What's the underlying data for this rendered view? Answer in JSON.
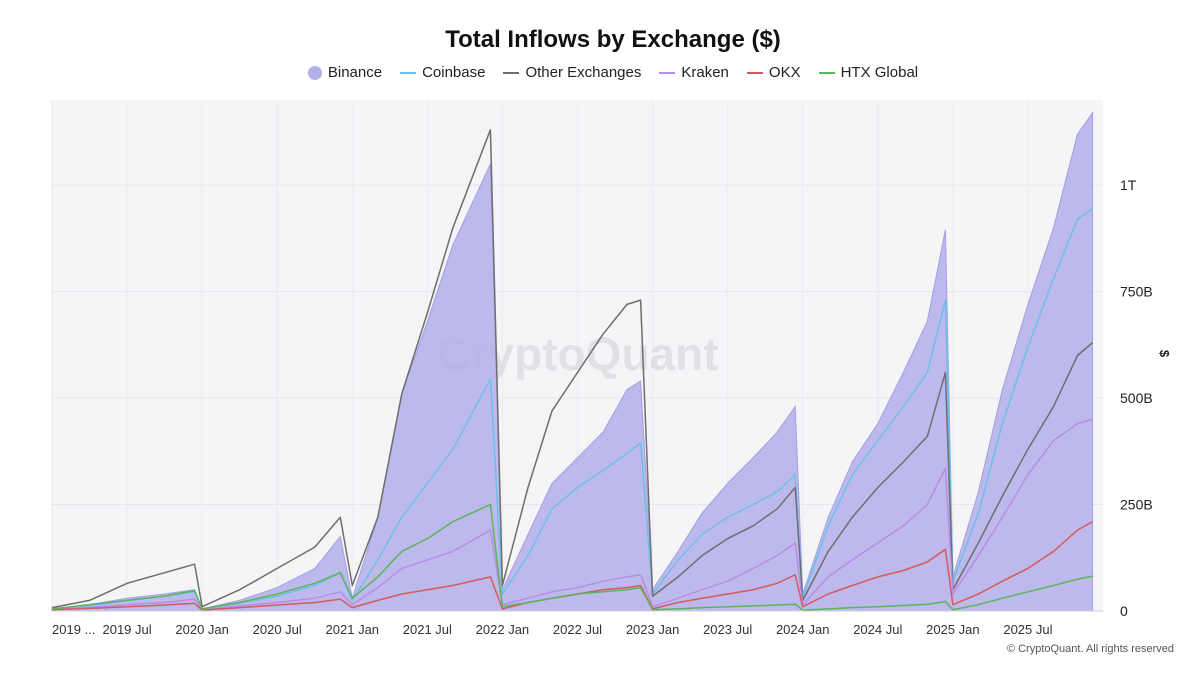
{
  "chart_data": {
    "type": "area",
    "title": "Total Inflows by Exchange ($)",
    "ylabel": "$",
    "ylim": [
      0,
      1200
    ],
    "y_unit": "billions USD",
    "x_range": [
      2019.0,
      2025.97
    ],
    "grid": true,
    "legend_position": "top-center",
    "watermark": "CryptoQuant",
    "copyright": "© CryptoQuant. All rights reserved",
    "x_ticks": [
      {
        "x": 2019.0,
        "label": "2019 ..."
      },
      {
        "x": 2019.5,
        "label": "2019 Jul"
      },
      {
        "x": 2020.0,
        "label": "2020 Jan"
      },
      {
        "x": 2020.5,
        "label": "2020 Jul"
      },
      {
        "x": 2021.0,
        "label": "2021 Jan"
      },
      {
        "x": 2021.5,
        "label": "2021 Jul"
      },
      {
        "x": 2022.0,
        "label": "2022 Jan"
      },
      {
        "x": 2022.5,
        "label": "2022 Jul"
      },
      {
        "x": 2023.0,
        "label": "2023 Jan"
      },
      {
        "x": 2023.5,
        "label": "2023 Jul"
      },
      {
        "x": 2024.0,
        "label": "2024 Jan"
      },
      {
        "x": 2024.5,
        "label": "2024 Jul"
      },
      {
        "x": 2025.0,
        "label": "2025 Jan"
      },
      {
        "x": 2025.5,
        "label": "2025 Jul"
      }
    ],
    "y_ticks": [
      {
        "v": 0,
        "label": "0"
      },
      {
        "v": 250,
        "label": "250B"
      },
      {
        "v": 500,
        "label": "500B"
      },
      {
        "v": 750,
        "label": "750B"
      },
      {
        "v": 1000,
        "label": "1T"
      }
    ],
    "series": [
      {
        "name": "Binance",
        "color": "#b3aeea",
        "style": "area",
        "points": [
          [
            2019.0,
            5
          ],
          [
            2019.25,
            15
          ],
          [
            2019.5,
            30
          ],
          [
            2019.75,
            40
          ],
          [
            2019.95,
            50
          ],
          [
            2020.0,
            5
          ],
          [
            2020.25,
            25
          ],
          [
            2020.5,
            55
          ],
          [
            2020.75,
            100
          ],
          [
            2020.92,
            175
          ],
          [
            2021.0,
            30
          ],
          [
            2021.17,
            220
          ],
          [
            2021.33,
            510
          ],
          [
            2021.5,
            680
          ],
          [
            2021.67,
            860
          ],
          [
            2021.92,
            1050
          ],
          [
            2022.0,
            50
          ],
          [
            2022.17,
            180
          ],
          [
            2022.33,
            300
          ],
          [
            2022.5,
            360
          ],
          [
            2022.67,
            420
          ],
          [
            2022.83,
            520
          ],
          [
            2022.92,
            540
          ],
          [
            2023.0,
            50
          ],
          [
            2023.17,
            140
          ],
          [
            2023.33,
            230
          ],
          [
            2023.5,
            300
          ],
          [
            2023.67,
            360
          ],
          [
            2023.83,
            420
          ],
          [
            2023.95,
            480
          ],
          [
            2024.0,
            40
          ],
          [
            2024.17,
            220
          ],
          [
            2024.33,
            350
          ],
          [
            2024.5,
            440
          ],
          [
            2024.67,
            560
          ],
          [
            2024.83,
            680
          ],
          [
            2024.95,
            895
          ],
          [
            2025.0,
            80
          ],
          [
            2025.17,
            280
          ],
          [
            2025.33,
            520
          ],
          [
            2025.5,
            720
          ],
          [
            2025.67,
            900
          ],
          [
            2025.83,
            1120
          ],
          [
            2025.93,
            1170
          ]
        ]
      },
      {
        "name": "Coinbase",
        "color": "#6cc0e8",
        "style": "line",
        "points": [
          [
            2019.0,
            5
          ],
          [
            2019.25,
            12
          ],
          [
            2019.5,
            25
          ],
          [
            2019.75,
            35
          ],
          [
            2019.95,
            45
          ],
          [
            2020.0,
            5
          ],
          [
            2020.25,
            18
          ],
          [
            2020.5,
            35
          ],
          [
            2020.75,
            60
          ],
          [
            2020.92,
            90
          ],
          [
            2021.0,
            25
          ],
          [
            2021.17,
            120
          ],
          [
            2021.33,
            220
          ],
          [
            2021.5,
            300
          ],
          [
            2021.67,
            380
          ],
          [
            2021.92,
            545
          ],
          [
            2022.0,
            40
          ],
          [
            2022.17,
            130
          ],
          [
            2022.33,
            240
          ],
          [
            2022.5,
            290
          ],
          [
            2022.67,
            330
          ],
          [
            2022.83,
            370
          ],
          [
            2022.92,
            395
          ],
          [
            2023.0,
            40
          ],
          [
            2023.17,
            120
          ],
          [
            2023.33,
            180
          ],
          [
            2023.5,
            220
          ],
          [
            2023.67,
            250
          ],
          [
            2023.83,
            280
          ],
          [
            2023.95,
            320
          ],
          [
            2024.0,
            30
          ],
          [
            2024.17,
            200
          ],
          [
            2024.33,
            320
          ],
          [
            2024.5,
            400
          ],
          [
            2024.67,
            480
          ],
          [
            2024.83,
            560
          ],
          [
            2024.95,
            730
          ],
          [
            2025.0,
            70
          ],
          [
            2025.17,
            230
          ],
          [
            2025.33,
            440
          ],
          [
            2025.5,
            620
          ],
          [
            2025.67,
            780
          ],
          [
            2025.83,
            920
          ],
          [
            2025.93,
            945
          ]
        ]
      },
      {
        "name": "Other Exchanges",
        "color": "#6e6e6e",
        "style": "line",
        "points": [
          [
            2019.0,
            8
          ],
          [
            2019.25,
            25
          ],
          [
            2019.5,
            65
          ],
          [
            2019.75,
            90
          ],
          [
            2019.95,
            110
          ],
          [
            2020.0,
            10
          ],
          [
            2020.25,
            50
          ],
          [
            2020.5,
            100
          ],
          [
            2020.75,
            150
          ],
          [
            2020.92,
            220
          ],
          [
            2021.0,
            60
          ],
          [
            2021.17,
            220
          ],
          [
            2021.33,
            510
          ],
          [
            2021.5,
            700
          ],
          [
            2021.67,
            900
          ],
          [
            2021.92,
            1130
          ],
          [
            2022.0,
            60
          ],
          [
            2022.17,
            290
          ],
          [
            2022.33,
            470
          ],
          [
            2022.5,
            560
          ],
          [
            2022.67,
            650
          ],
          [
            2022.83,
            720
          ],
          [
            2022.92,
            730
          ],
          [
            2023.0,
            35
          ],
          [
            2023.17,
            80
          ],
          [
            2023.33,
            130
          ],
          [
            2023.5,
            170
          ],
          [
            2023.67,
            200
          ],
          [
            2023.83,
            240
          ],
          [
            2023.95,
            290
          ],
          [
            2024.0,
            25
          ],
          [
            2024.17,
            140
          ],
          [
            2024.33,
            220
          ],
          [
            2024.5,
            290
          ],
          [
            2024.67,
            350
          ],
          [
            2024.83,
            410
          ],
          [
            2024.95,
            560
          ],
          [
            2025.0,
            50
          ],
          [
            2025.17,
            160
          ],
          [
            2025.33,
            270
          ],
          [
            2025.5,
            380
          ],
          [
            2025.67,
            480
          ],
          [
            2025.83,
            600
          ],
          [
            2025.93,
            630
          ]
        ]
      },
      {
        "name": "Kraken",
        "color": "#b98ce6",
        "style": "line",
        "points": [
          [
            2019.0,
            4
          ],
          [
            2019.25,
            8
          ],
          [
            2019.5,
            15
          ],
          [
            2019.75,
            20
          ],
          [
            2019.95,
            28
          ],
          [
            2020.0,
            3
          ],
          [
            2020.25,
            12
          ],
          [
            2020.5,
            20
          ],
          [
            2020.75,
            30
          ],
          [
            2020.92,
            45
          ],
          [
            2021.0,
            15
          ],
          [
            2021.17,
            55
          ],
          [
            2021.33,
            100
          ],
          [
            2021.5,
            120
          ],
          [
            2021.67,
            140
          ],
          [
            2021.92,
            190
          ],
          [
            2022.0,
            15
          ],
          [
            2022.17,
            30
          ],
          [
            2022.33,
            45
          ],
          [
            2022.5,
            55
          ],
          [
            2022.67,
            70
          ],
          [
            2022.83,
            80
          ],
          [
            2022.92,
            85
          ],
          [
            2023.0,
            10
          ],
          [
            2023.17,
            30
          ],
          [
            2023.33,
            50
          ],
          [
            2023.5,
            70
          ],
          [
            2023.67,
            100
          ],
          [
            2023.83,
            130
          ],
          [
            2023.95,
            160
          ],
          [
            2024.0,
            15
          ],
          [
            2024.17,
            80
          ],
          [
            2024.33,
            120
          ],
          [
            2024.5,
            160
          ],
          [
            2024.67,
            200
          ],
          [
            2024.83,
            250
          ],
          [
            2024.95,
            335
          ],
          [
            2025.0,
            40
          ],
          [
            2025.17,
            130
          ],
          [
            2025.33,
            220
          ],
          [
            2025.5,
            320
          ],
          [
            2025.67,
            400
          ],
          [
            2025.83,
            440
          ],
          [
            2025.93,
            450
          ]
        ]
      },
      {
        "name": "OKX",
        "color": "#d65a5a",
        "style": "line",
        "points": [
          [
            2019.0,
            3
          ],
          [
            2019.25,
            6
          ],
          [
            2019.5,
            10
          ],
          [
            2019.75,
            14
          ],
          [
            2019.95,
            18
          ],
          [
            2020.0,
            2
          ],
          [
            2020.25,
            8
          ],
          [
            2020.5,
            14
          ],
          [
            2020.75,
            20
          ],
          [
            2020.92,
            28
          ],
          [
            2021.0,
            8
          ],
          [
            2021.17,
            25
          ],
          [
            2021.33,
            40
          ],
          [
            2021.5,
            50
          ],
          [
            2021.67,
            60
          ],
          [
            2021.92,
            80
          ],
          [
            2022.0,
            5
          ],
          [
            2022.17,
            20
          ],
          [
            2022.33,
            30
          ],
          [
            2022.5,
            40
          ],
          [
            2022.67,
            50
          ],
          [
            2022.83,
            55
          ],
          [
            2022.92,
            60
          ],
          [
            2023.0,
            5
          ],
          [
            2023.17,
            20
          ],
          [
            2023.33,
            30
          ],
          [
            2023.5,
            40
          ],
          [
            2023.67,
            50
          ],
          [
            2023.83,
            65
          ],
          [
            2023.95,
            85
          ],
          [
            2024.0,
            10
          ],
          [
            2024.17,
            40
          ],
          [
            2024.33,
            60
          ],
          [
            2024.5,
            80
          ],
          [
            2024.67,
            95
          ],
          [
            2024.83,
            115
          ],
          [
            2024.95,
            145
          ],
          [
            2025.0,
            15
          ],
          [
            2025.17,
            40
          ],
          [
            2025.33,
            70
          ],
          [
            2025.5,
            100
          ],
          [
            2025.67,
            140
          ],
          [
            2025.83,
            190
          ],
          [
            2025.93,
            210
          ]
        ]
      },
      {
        "name": "HTX Global",
        "color": "#5ab55a",
        "style": "line",
        "points": [
          [
            2019.0,
            5
          ],
          [
            2019.25,
            15
          ],
          [
            2019.5,
            25
          ],
          [
            2019.75,
            35
          ],
          [
            2019.95,
            48
          ],
          [
            2020.0,
            5
          ],
          [
            2020.25,
            20
          ],
          [
            2020.5,
            40
          ],
          [
            2020.75,
            65
          ],
          [
            2020.92,
            90
          ],
          [
            2021.0,
            30
          ],
          [
            2021.17,
            80
          ],
          [
            2021.33,
            140
          ],
          [
            2021.5,
            170
          ],
          [
            2021.67,
            210
          ],
          [
            2021.92,
            250
          ],
          [
            2022.0,
            10
          ],
          [
            2022.17,
            20
          ],
          [
            2022.33,
            30
          ],
          [
            2022.5,
            40
          ],
          [
            2022.67,
            45
          ],
          [
            2022.83,
            50
          ],
          [
            2022.92,
            55
          ],
          [
            2023.0,
            3
          ],
          [
            2023.17,
            5
          ],
          [
            2023.33,
            8
          ],
          [
            2023.5,
            10
          ],
          [
            2023.67,
            12
          ],
          [
            2023.83,
            14
          ],
          [
            2023.95,
            16
          ],
          [
            2024.0,
            2
          ],
          [
            2024.17,
            5
          ],
          [
            2024.33,
            8
          ],
          [
            2024.5,
            10
          ],
          [
            2024.67,
            13
          ],
          [
            2024.83,
            16
          ],
          [
            2024.95,
            22
          ],
          [
            2025.0,
            3
          ],
          [
            2025.17,
            15
          ],
          [
            2025.33,
            30
          ],
          [
            2025.5,
            45
          ],
          [
            2025.67,
            60
          ],
          [
            2025.83,
            75
          ],
          [
            2025.93,
            82
          ]
        ]
      }
    ]
  }
}
